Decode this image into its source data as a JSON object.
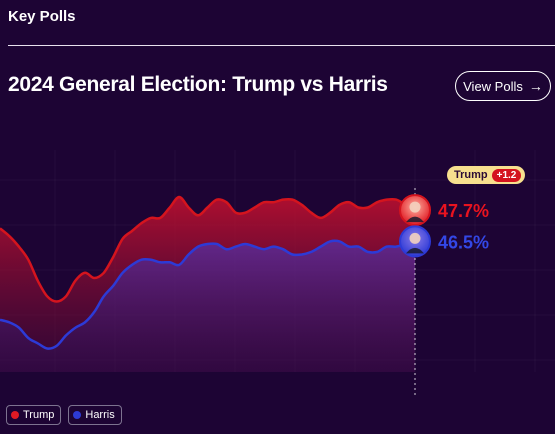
{
  "section_title": "Key Polls",
  "title": "2024 General Election: Trump vs Harris",
  "view_polls_label": "View Polls",
  "leader": {
    "name": "Trump",
    "margin": "+1.2"
  },
  "colors": {
    "trump": "#d4141e",
    "harris": "#2d3ad6",
    "background": "#1d0434"
  },
  "chart_data": {
    "type": "area",
    "series": [
      {
        "name": "Trump",
        "color": "#d4141e",
        "label": "47.7%",
        "values": [
          47.0,
          46.7,
          46.3,
          45.8,
          45.0,
          44.4,
          44.2,
          44.4,
          45.0,
          45.3,
          45.1,
          45.3,
          45.9,
          46.6,
          46.9,
          47.2,
          47.4,
          47.4,
          47.8,
          48.2,
          47.8,
          47.5,
          47.8,
          48.1,
          48.0,
          47.6,
          47.6,
          47.8,
          48.0,
          48.0,
          48.1,
          48.1,
          47.9,
          47.6,
          47.4,
          47.6,
          47.9,
          48.0,
          47.8,
          47.8,
          48.0,
          48.1,
          48.1,
          47.9,
          47.7
        ]
      },
      {
        "name": "Harris",
        "color": "#2d3ad6",
        "label": "46.5%",
        "values": [
          43.5,
          43.4,
          43.2,
          42.8,
          42.6,
          42.4,
          42.5,
          42.9,
          43.2,
          43.4,
          43.8,
          44.4,
          44.8,
          45.3,
          45.6,
          45.8,
          45.8,
          45.7,
          45.7,
          45.6,
          46.0,
          46.3,
          46.4,
          46.4,
          46.2,
          46.3,
          46.4,
          46.3,
          46.2,
          46.3,
          46.2,
          46.0,
          46.0,
          46.1,
          46.3,
          46.5,
          46.5,
          46.3,
          46.3,
          46.1,
          46.1,
          46.3,
          46.3,
          46.4,
          46.5
        ]
      }
    ],
    "legend": [
      "Trump",
      "Harris"
    ],
    "legend_position": "bottom-left",
    "ylim": [
      41.5,
      50.0
    ],
    "grid": true
  }
}
